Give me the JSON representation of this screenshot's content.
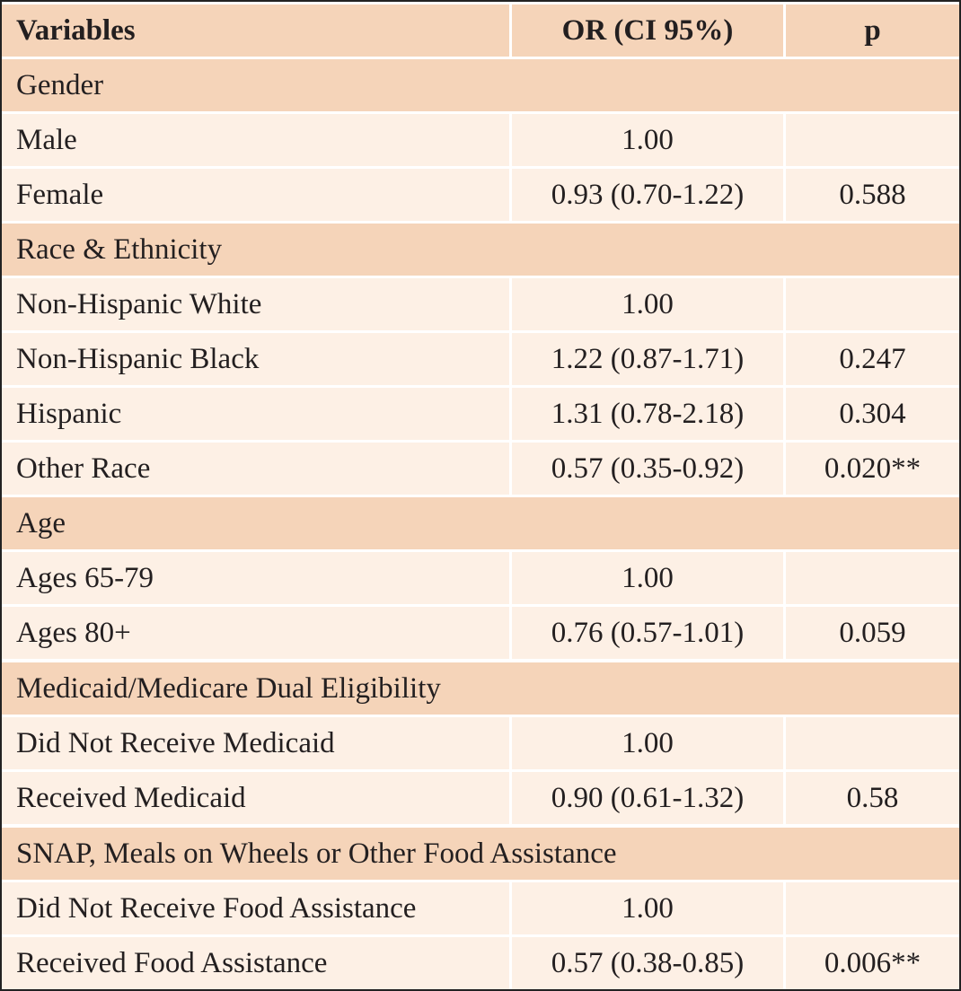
{
  "header": {
    "variables": "Variables",
    "or_ci": "OR (CI 95%)",
    "p": "p"
  },
  "groups": [
    {
      "label": "Gender",
      "rows": [
        {
          "variable": "Male",
          "or_ci": "1.00",
          "p": ""
        },
        {
          "variable": "Female",
          "or_ci": "0.93 (0.70-1.22)",
          "p": "0.588"
        }
      ]
    },
    {
      "label": "Race & Ethnicity",
      "rows": [
        {
          "variable": "Non-Hispanic White",
          "or_ci": "1.00",
          "p": ""
        },
        {
          "variable": "Non-Hispanic Black",
          "or_ci": "1.22 (0.87-1.71)",
          "p": "0.247"
        },
        {
          "variable": "Hispanic",
          "or_ci": "1.31 (0.78-2.18)",
          "p": "0.304"
        },
        {
          "variable": "Other Race",
          "or_ci": "0.57 (0.35-0.92)",
          "p": "0.020**"
        }
      ]
    },
    {
      "label": "Age",
      "rows": [
        {
          "variable": "Ages 65-79",
          "or_ci": "1.00",
          "p": ""
        },
        {
          "variable": "Ages 80+",
          "or_ci": "0.76 (0.57-1.01)",
          "p": "0.059"
        }
      ]
    },
    {
      "label": "Medicaid/Medicare Dual Eligibility",
      "rows": [
        {
          "variable": "Did Not Receive Medicaid",
          "or_ci": "1.00",
          "p": ""
        },
        {
          "variable": "Received Medicaid",
          "or_ci": "0.90 (0.61-1.32)",
          "p": "0.58"
        }
      ]
    },
    {
      "label": "SNAP, Meals on Wheels or Other Food Assistance",
      "rows": [
        {
          "variable": "Did Not Receive Food Assistance",
          "or_ci": "1.00",
          "p": ""
        },
        {
          "variable": "Received Food Assistance",
          "or_ci": "0.57 (0.38-0.85)",
          "p": "0.006**"
        }
      ]
    }
  ]
}
